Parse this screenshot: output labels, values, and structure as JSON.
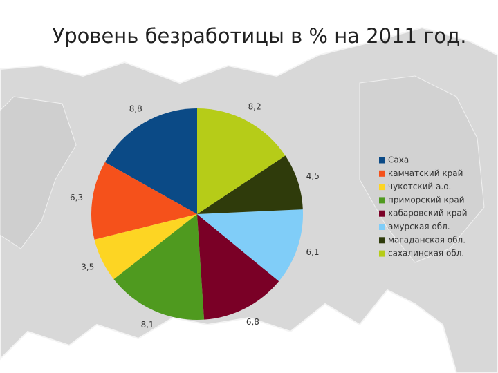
{
  "chart_data": {
    "type": "pie",
    "title": "Уровень безработицы в % на  2011 год.",
    "categories": [
      "Саха",
      "камчатский край",
      "чукотский а.о.",
      "приморский край",
      "хабаровский край",
      "амурская обл.",
      "магаданская обл.",
      "сахалинская обл."
    ],
    "values": [
      8.8,
      6.3,
      3.5,
      8.1,
      6.8,
      6.1,
      4.5,
      8.2
    ],
    "value_labels": [
      "8,8",
      "6,3",
      "3,5",
      "8,1",
      "6,8",
      "6,1",
      "4,5",
      "8,2"
    ],
    "colors": [
      "#0b4a86",
      "#f5511b",
      "#fdd523",
      "#4f9a1f",
      "#7a0026",
      "#80cdf8",
      "#2f3b0b",
      "#b6cc18"
    ],
    "legend": "right"
  }
}
